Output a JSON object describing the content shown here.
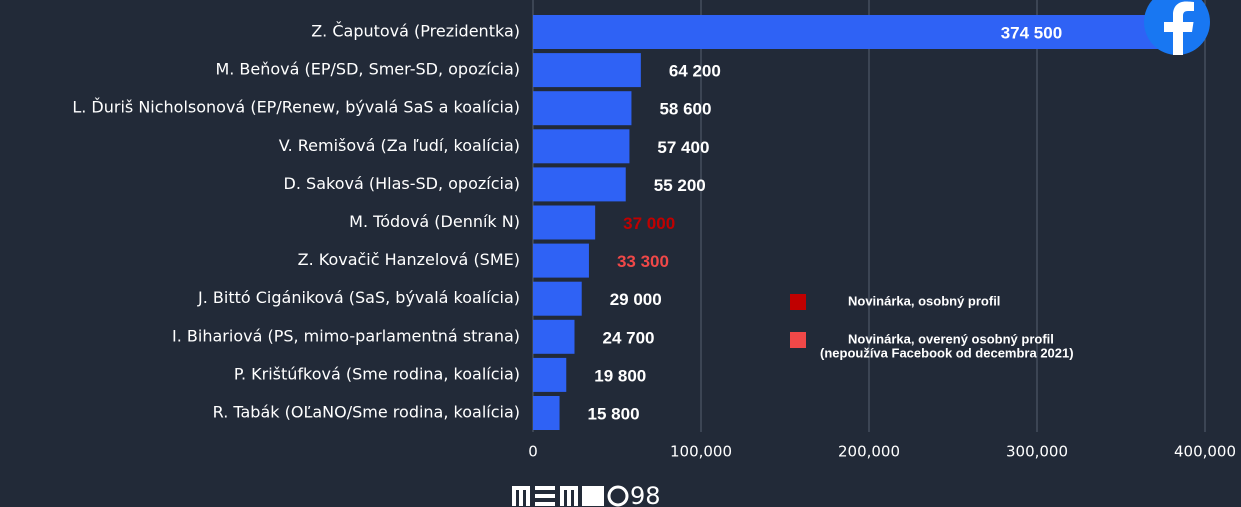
{
  "chart_data": {
    "type": "bar",
    "orientation": "horizontal",
    "categories": [
      "Z. Čaputová (Prezidentka)",
      "M. Beňová (EP/SD, Smer-SD, opozícia)",
      "L. Ďuriš Nicholsonová (EP/Renew, bývalá SaS a koalícia)",
      "V. Remišová (Za ľudí, koalícia)",
      "D. Saková (Hlas-SD, opozícia)",
      "M. Tódová (Denník N)",
      "Z. Kovačič Hanzelová (SME)",
      "J. Bittó Cigániková (SaS, bývalá koalícia)",
      "I. Bihariová (PS, mimo-parlamentná strana)",
      "P. Krištúfková (Sme rodina, koalícia)",
      "R. Tabák (OĽaNO/Sme rodina, koalícia)"
    ],
    "values": [
      374500,
      64200,
      58600,
      57400,
      55200,
      37000,
      33300,
      29000,
      24700,
      19800,
      15800
    ],
    "value_labels": [
      "374 500",
      "64 200",
      "58 600",
      "57 400",
      "55 200",
      "37 000",
      "33 300",
      "29 000",
      "24 700",
      "19 800",
      "15 800"
    ],
    "value_label_colors": [
      "#ffffff",
      "#ffffff",
      "#ffffff",
      "#ffffff",
      "#ffffff",
      "#c00000",
      "#f04848",
      "#ffffff",
      "#ffffff",
      "#ffffff",
      "#ffffff"
    ],
    "color": "#2f62f5",
    "xlim": [
      0,
      400000
    ],
    "xticks": [
      0,
      {
        "value": 100000,
        "label": "100,000"
      },
      {
        "value": 200000,
        "label": "200,000"
      },
      {
        "value": 300000,
        "label": "300,000"
      },
      {
        "value": 400000,
        "label": "400,000"
      }
    ],
    "grid": true,
    "legend": [
      {
        "label": [
          "Novinárka, osobný profil"
        ],
        "color": "#c00000"
      },
      {
        "label": [
          "Novinárka, overený osobný profil",
          "(nepoužíva Facebook od decembra 2021)"
        ],
        "color": "#f04848"
      }
    ],
    "logo": "98"
  }
}
